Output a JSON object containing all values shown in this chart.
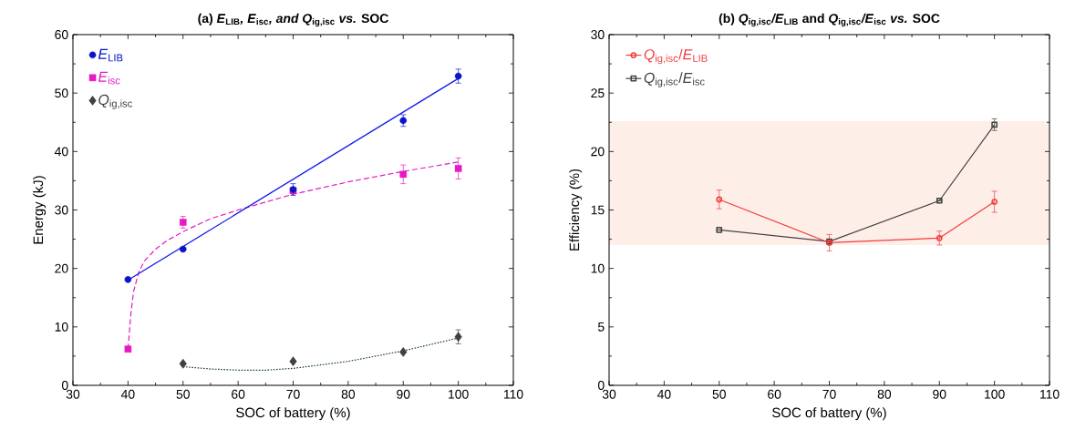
{
  "chart_data": [
    {
      "type": "scatter",
      "title": "(a) *E*$_{LIB}$*, E*$_{isc}$*, and Q*$_{ig,isc}$ *vs.* SOC",
      "xlabel": "SOC of battery (%)",
      "ylabel": "Energy (kJ)",
      "xlim": [
        30,
        110
      ],
      "xticks": [
        30,
        40,
        50,
        60,
        70,
        80,
        90,
        100,
        110
      ],
      "ylim": [
        0,
        60
      ],
      "yticks": [
        0,
        10,
        20,
        30,
        40,
        50,
        60
      ],
      "legend": "top left",
      "series": [
        {
          "name": "*E*$_{LIB}$",
          "color": "#0a14c8",
          "marker": "circle",
          "x": [
            40,
            50,
            70,
            90,
            100
          ],
          "values": [
            18.1,
            23.3,
            33.5,
            45.3,
            52.9
          ],
          "errors": [
            null,
            null,
            1.0,
            1.0,
            1.2
          ]
        },
        {
          "name": "*E*$_{isc}$",
          "color": "#e619c3",
          "marker": "square",
          "x": [
            40,
            50,
            70,
            90,
            100
          ],
          "values": [
            6.2,
            27.9,
            33.3,
            36.1,
            37.1
          ],
          "errors": [
            null,
            1.0,
            null,
            1.6,
            1.8
          ]
        },
        {
          "name": "*Q*$_{ig,isc}$",
          "color": "#404040",
          "marker": "diamond",
          "x": [
            50,
            70,
            90,
            100
          ],
          "values": [
            3.7,
            4.1,
            5.7,
            8.3
          ],
          "errors": [
            null,
            null,
            null,
            1.2
          ]
        },
        {
          "type": "line",
          "color": "#0a14e6",
          "line_style": "solid",
          "x": [
            40,
            100
          ],
          "values": [
            18.0,
            52.5
          ]
        },
        {
          "type": "line",
          "color": "#e619c3",
          "line_style": "dashed",
          "x": [
            40,
            40.5,
            41,
            42,
            43,
            45,
            47,
            50,
            55,
            60,
            70,
            80,
            90,
            100
          ],
          "values": [
            6.2,
            12,
            16,
            19.5,
            21.3,
            23.3,
            24.7,
            26.3,
            28.5,
            30,
            32.7,
            34.8,
            36.6,
            38.2
          ]
        },
        {
          "type": "line",
          "color": "#1a3a4a",
          "line_style": "dotted",
          "x": [
            50,
            55,
            60,
            65,
            70,
            80,
            90,
            100
          ],
          "values": [
            3.2,
            2.8,
            2.6,
            2.6,
            2.9,
            4.1,
            5.9,
            8.1
          ]
        }
      ]
    },
    {
      "type": "line",
      "title": "(b) *Q*$_{ig,isc}$*/E*$_{LIB}$ and *Q*$_{ig,isc}$*/E*$_{isc}$ *vs.* SOC",
      "xlabel": "SOC of battery (%)",
      "ylabel": "Efficiency (%)",
      "xlim": [
        30,
        110
      ],
      "xticks": [
        30,
        40,
        50,
        60,
        70,
        80,
        90,
        100,
        110
      ],
      "ylim": [
        0,
        30
      ],
      "yticks": [
        0,
        5,
        10,
        15,
        20,
        25,
        30
      ],
      "legend": "top left",
      "bands": [
        {
          "axis": "y",
          "from": 12,
          "to": 22.6,
          "color": "#fdefe8"
        }
      ],
      "x": [
        50,
        70,
        90,
        100
      ],
      "series": [
        {
          "name": "*Q*$_{ig,isc}$/*E*$_{LIB}$",
          "color": "#f03c3c",
          "marker": "circle",
          "values": [
            15.9,
            12.2,
            12.6,
            15.7
          ],
          "errors": [
            0.8,
            0.7,
            0.6,
            0.9
          ]
        },
        {
          "name": "*Q*$_{ig,isc}$/*E*$_{isc}$",
          "color": "#404040",
          "marker": "square",
          "values": [
            13.3,
            12.3,
            15.8,
            22.3
          ],
          "errors": [
            null,
            null,
            null,
            0.5
          ]
        }
      ]
    }
  ]
}
